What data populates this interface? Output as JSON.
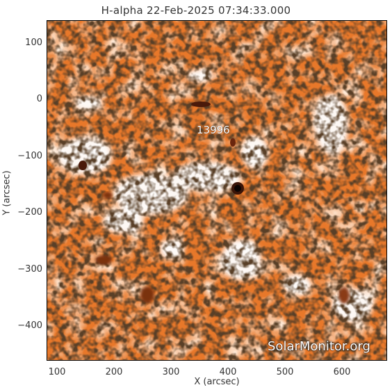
{
  "title": "H-alpha 22-Feb-2025 07:34:33.000",
  "region_label": "13996",
  "watermark": "SolarMonitor.org",
  "axes": {
    "xlabel": "X (arcsec)",
    "ylabel": "Y (arcsec)",
    "xticks": [
      "100",
      "200",
      "300",
      "400",
      "500",
      "600"
    ],
    "yticks": [
      "100",
      "0",
      "−100",
      "−200",
      "−300",
      "−400"
    ],
    "xlim": [
      82,
      680
    ],
    "ylim": [
      -460,
      140
    ]
  },
  "colors": {
    "quiet_sun": "#e8782a",
    "plage": "#ffffff",
    "dark_fibril": "#1a0e08",
    "sunspot": "#3a1408"
  }
}
